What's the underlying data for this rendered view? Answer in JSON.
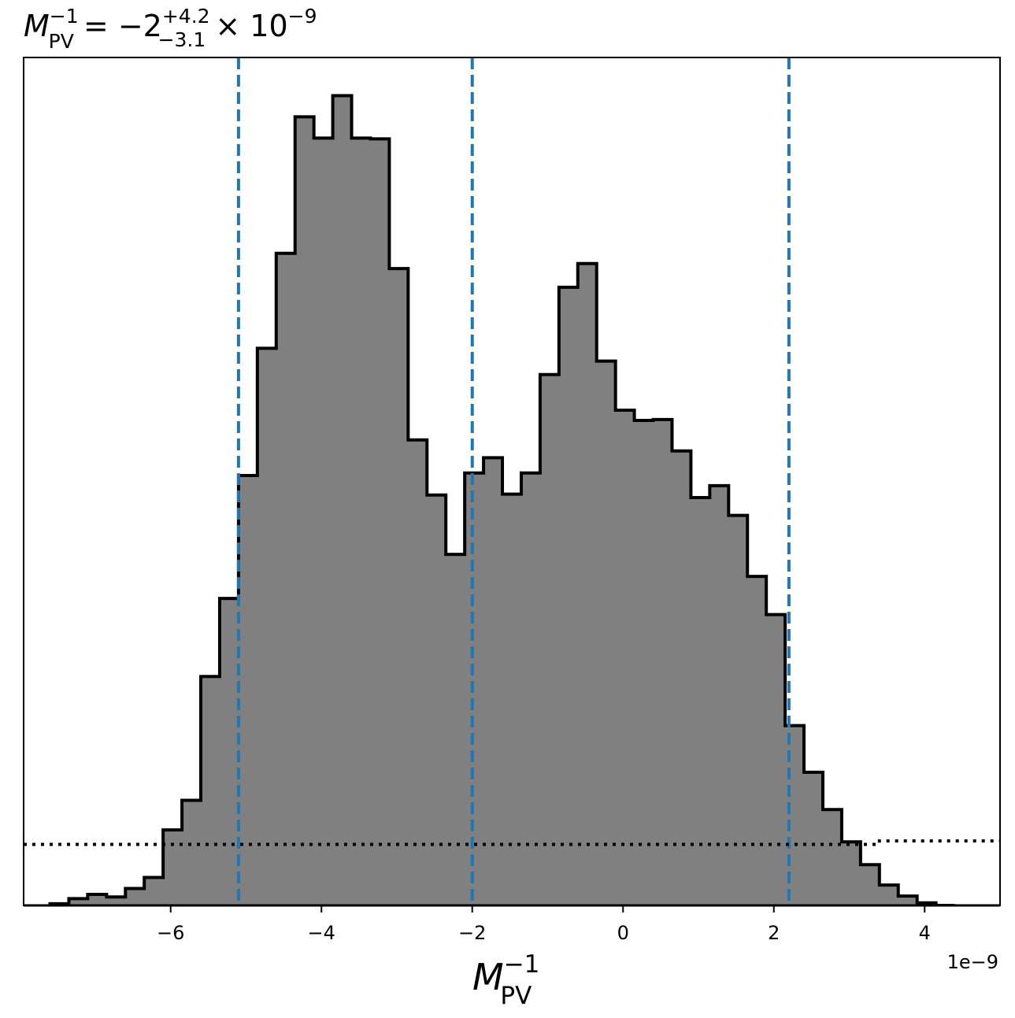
{
  "chart_data": {
    "type": "histogram",
    "title": {
      "symbol": "M",
      "subscript": "PV",
      "superscript": "−1",
      "equals": " = −2",
      "plus": "+4.2",
      "minus": "−3.1",
      "times": " × 10",
      "exponent": "−9"
    },
    "xlabel": {
      "symbol": "M",
      "subscript": "PV",
      "superscript": "−1"
    },
    "x_offset_label": "1e−9",
    "xlim": [
      -7.95,
      5.0
    ],
    "ylim": [
      0,
      1.0
    ],
    "bin_edges": [
      -7.6,
      -7.35,
      -7.1,
      -6.85,
      -6.6,
      -6.35,
      -6.1,
      -5.85,
      -5.6,
      -5.35,
      -5.1,
      -4.85,
      -4.6,
      -4.35,
      -4.1,
      -3.85,
      -3.6,
      -3.35,
      -3.1,
      -2.85,
      -2.6,
      -2.35,
      -2.1,
      -1.85,
      -1.6,
      -1.35,
      -1.1,
      -0.85,
      -0.6,
      -0.35,
      -0.1,
      0.15,
      0.4,
      0.65,
      0.9,
      1.15,
      1.4,
      1.65,
      1.9,
      2.15,
      2.4,
      2.65,
      2.9,
      3.15,
      3.4,
      3.65,
      3.9,
      4.15,
      4.4
    ],
    "counts": [
      0.002,
      0.008,
      0.013,
      0.01,
      0.02,
      0.033,
      0.089,
      0.124,
      0.27,
      0.362,
      0.507,
      0.657,
      0.769,
      0.93,
      0.905,
      0.955,
      0.905,
      0.904,
      0.751,
      0.549,
      0.484,
      0.414,
      0.51,
      0.528,
      0.485,
      0.51,
      0.626,
      0.729,
      0.757,
      0.642,
      0.584,
      0.572,
      0.573,
      0.536,
      0.481,
      0.495,
      0.46,
      0.388,
      0.343,
      0.212,
      0.157,
      0.113,
      0.075,
      0.048,
      0.024,
      0.011,
      0.003,
      0.0
    ],
    "vlines": [
      -5.1,
      -2.0,
      2.2
    ],
    "hline": {
      "x": [
        -7.95,
        3.4,
        3.4,
        5.0
      ],
      "y": [
        0.072,
        0.072,
        0.076,
        0.076
      ]
    },
    "xticks": [
      -6,
      -4,
      -2,
      0,
      2,
      4
    ],
    "xtick_labels": [
      "−6",
      "−4",
      "−2",
      "0",
      "2",
      "4"
    ],
    "colors": {
      "fill": "#808080",
      "edge": "#000000",
      "vline": "#1f77b4",
      "hline": "#000000"
    }
  }
}
